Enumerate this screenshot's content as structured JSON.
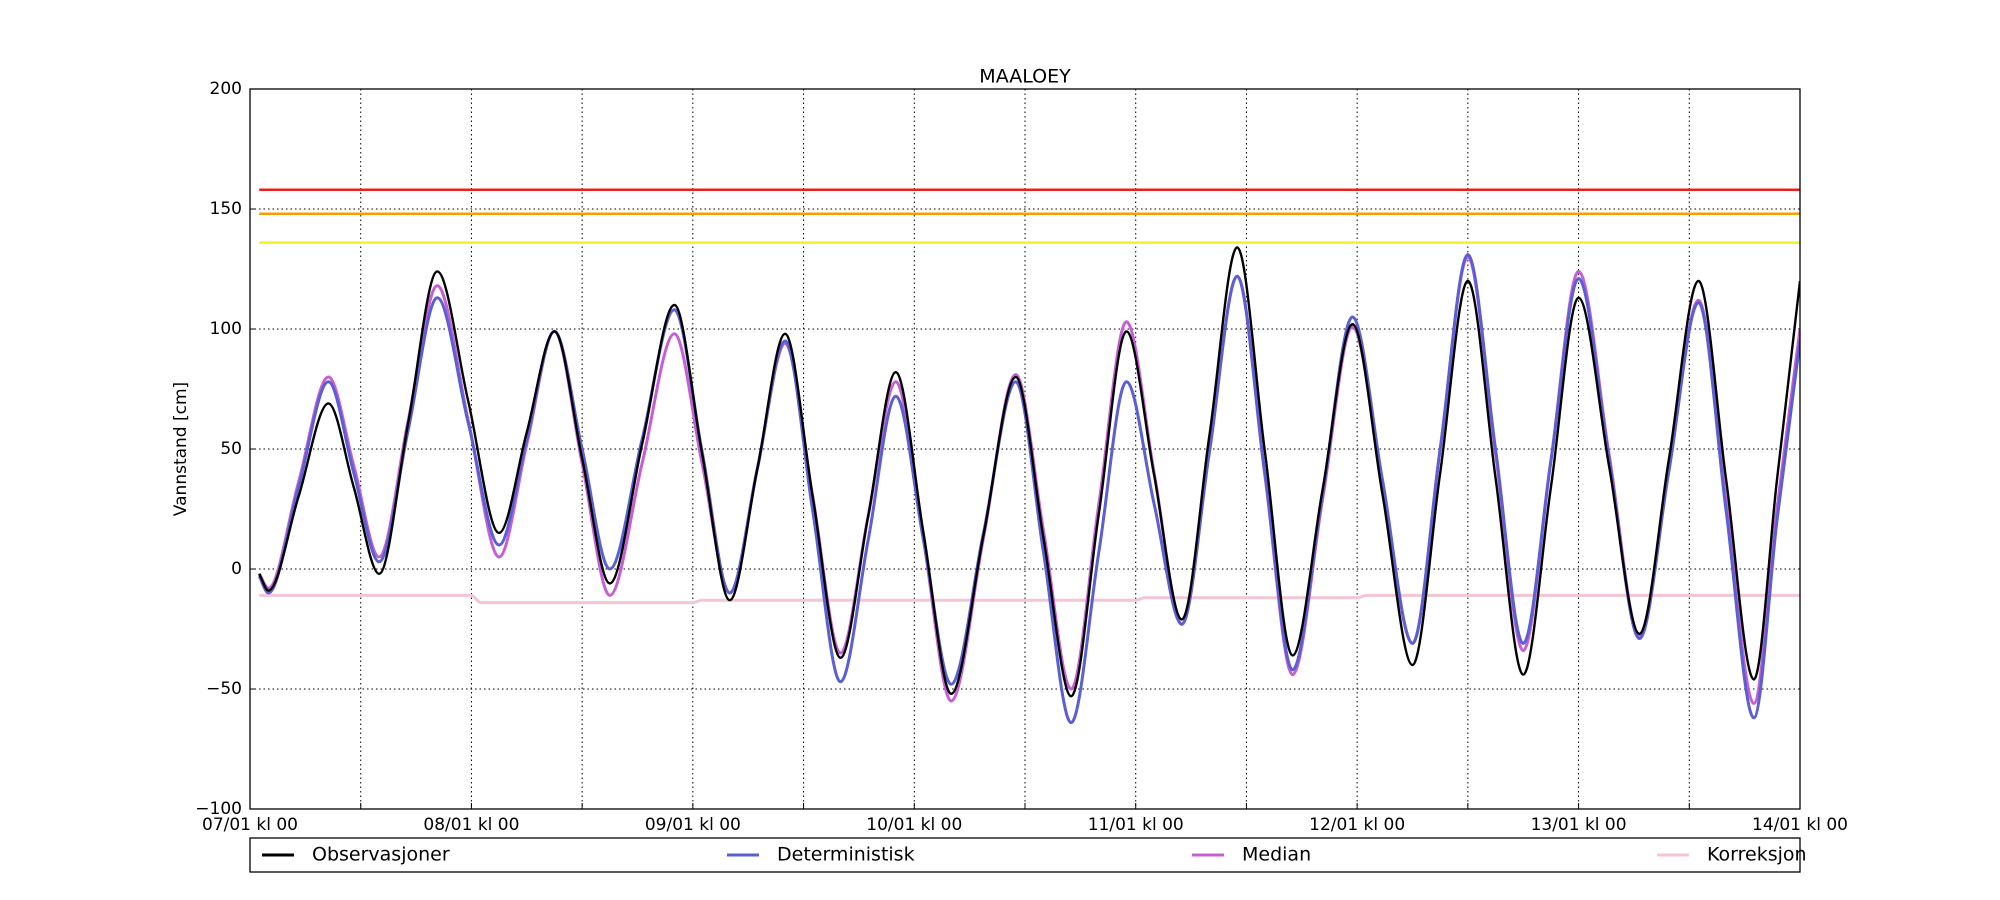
{
  "chart_data": {
    "type": "line",
    "title": "MAALOEY",
    "y_label": "Vannstand [cm]",
    "xlim": [
      0,
      168
    ],
    "xticks": [
      {
        "value": 0,
        "label": "07/01 kl 00"
      },
      {
        "value": 24,
        "label": "08/01 kl 00"
      },
      {
        "value": 48,
        "label": "09/01 kl 00"
      },
      {
        "value": 72,
        "label": "10/01 kl 00"
      },
      {
        "value": 96,
        "label": "11/01 kl 00"
      },
      {
        "value": 120,
        "label": "12/01 kl 00"
      },
      {
        "value": 144,
        "label": "13/01 kl 00"
      },
      {
        "value": 168,
        "label": "14/01 kl 00"
      }
    ],
    "xminorticks": [
      12,
      36,
      60,
      84,
      108,
      132,
      156
    ],
    "ylim": [
      -100,
      200
    ],
    "yticks": [
      {
        "value": -100,
        "label": "−100"
      },
      {
        "value": -50,
        "label": "−50"
      },
      0,
      50,
      100,
      150,
      200
    ],
    "grid": true,
    "hlines": [
      {
        "value": 158,
        "color": "#e8211c"
      },
      {
        "value": 148,
        "color": "#f5a000"
      },
      {
        "value": 136,
        "color": "#f2f21e"
      }
    ],
    "x": [
      1,
      2,
      5.25,
      8.5,
      11.25,
      14,
      17.15,
      20.3,
      23.65,
      27,
      30,
      33,
      36,
      39,
      42.5,
      46,
      49,
      52,
      55,
      58,
      61,
      64,
      67,
      70,
      73,
      76,
      79.5,
      83,
      86,
      89,
      92,
      95,
      98,
      101,
      104,
      107,
      110,
      113,
      116.25,
      119.5,
      122.75,
      126,
      129,
      132,
      135,
      138,
      141,
      144,
      147.3,
      150.6,
      153.8,
      157,
      160,
      163,
      165.5,
      168
    ],
    "series": [
      {
        "name": "Observasjoner",
        "color": "#000000",
        "values": [
          -2,
          -9,
          30,
          69,
          34,
          -2,
          61,
          124,
          70,
          15,
          57,
          99,
          46,
          -6,
          52,
          110,
          48,
          -13,
          42,
          98,
          30,
          -37,
          22,
          82,
          15,
          -52,
          14,
          80,
          13,
          -53,
          23,
          99,
          39,
          -21,
          56,
          134,
          49,
          -36,
          33,
          102,
          31,
          -40,
          40,
          120,
          38,
          -44,
          34,
          113,
          43,
          -27,
          46,
          120,
          37,
          -46,
          37,
          120
        ]
      },
      {
        "name": "Deterministisk",
        "color": "#5b5fd2",
        "values": [
          -3,
          -10,
          34,
          78,
          40,
          3,
          58,
          113,
          61,
          10,
          54,
          99,
          50,
          0,
          54,
          108,
          49,
          -10,
          42,
          95,
          24,
          -47,
          12,
          72,
          12,
          -48,
          15,
          78,
          7,
          -64,
          7,
          78,
          27,
          -23,
          49,
          122,
          40,
          -42,
          31,
          105,
          37,
          -31,
          50,
          131,
          50,
          -31,
          45,
          121,
          46,
          -29,
          41,
          111,
          24,
          -62,
          20,
          95
        ]
      },
      {
        "name": "Median",
        "color": "#c65fd6",
        "values": [
          -2,
          -8,
          36,
          80,
          43,
          5,
          62,
          118,
          62,
          5,
          52,
          99,
          44,
          -11,
          44,
          98,
          44,
          -10,
          42,
          94,
          30,
          -35,
          22,
          78,
          12,
          -55,
          13,
          81,
          16,
          -50,
          27,
          103,
          40,
          -23,
          50,
          122,
          39,
          -44,
          29,
          101,
          35,
          -31,
          50,
          130,
          48,
          -34,
          45,
          124,
          48,
          -28,
          42,
          112,
          28,
          -56,
          25,
          100
        ]
      },
      {
        "name": "Korreksjon",
        "color": "#f4c6d2",
        "x": [
          1,
          24,
          25,
          48,
          49,
          96,
          97,
          120,
          121,
          168
        ],
        "values": [
          -11,
          -11,
          -14,
          -14,
          -13,
          -13,
          -12,
          -12,
          -11,
          -11
        ]
      }
    ]
  }
}
